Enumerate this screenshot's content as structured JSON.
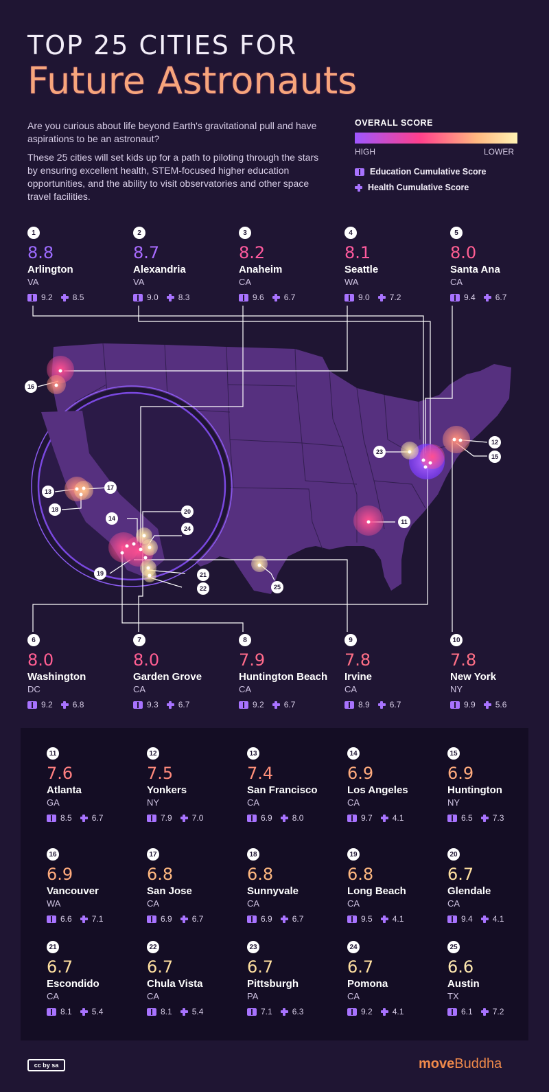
{
  "header": {
    "title_top": "TOP 25 CITIES FOR",
    "title_main": "Future Astronauts",
    "intro_1": "Are you curious about life beyond Earth's gravitational pull and have aspirations to be an astronaut?",
    "intro_2": "These 25 cities will set kids up for a path to piloting through the stars by ensuring excellent health, STEM-focused higher education opportunities, and the ability to visit observatories and other space travel facilities."
  },
  "legend": {
    "title": "OVERALL SCORE",
    "high": "HIGH",
    "low": "LOWER",
    "education": "Education Cumulative Score",
    "health": "Health Cumulative Score",
    "gradient_colors": [
      "#9d57ff",
      "#ff3f8c",
      "#ffb880",
      "#fff2b3"
    ]
  },
  "cities": [
    {
      "rank": "1",
      "score": "8.8",
      "name": "Arlington",
      "state": "VA",
      "edu": "9.2",
      "health": "8.5",
      "color": "#9d6bff"
    },
    {
      "rank": "2",
      "score": "8.7",
      "name": "Alexandria",
      "state": "VA",
      "edu": "9.0",
      "health": "8.3",
      "color": "#a86bff"
    },
    {
      "rank": "3",
      "score": "8.2",
      "name": "Anaheim",
      "state": "CA",
      "edu": "9.6",
      "health": "6.7",
      "color": "#ff5a9e"
    },
    {
      "rank": "4",
      "score": "8.1",
      "name": "Seattle",
      "state": "WA",
      "edu": "9.0",
      "health": "7.2",
      "color": "#ff5a9e"
    },
    {
      "rank": "5",
      "score": "8.0",
      "name": "Santa Ana",
      "state": "CA",
      "edu": "9.4",
      "health": "6.7",
      "color": "#ff5e92"
    },
    {
      "rank": "6",
      "score": "8.0",
      "name": "Washington",
      "state": "DC",
      "edu": "9.2",
      "health": "6.8",
      "color": "#ff5e92"
    },
    {
      "rank": "7",
      "score": "8.0",
      "name": "Garden Grove",
      "state": "CA",
      "edu": "9.3",
      "health": "6.7",
      "color": "#ff5e92"
    },
    {
      "rank": "8",
      "score": "7.9",
      "name": "Huntington Beach",
      "state": "CA",
      "edu": "9.2",
      "health": "6.7",
      "color": "#ff6a8a"
    },
    {
      "rank": "9",
      "score": "7.8",
      "name": "Irvine",
      "state": "CA",
      "edu": "8.9",
      "health": "6.7",
      "color": "#ff6f86"
    },
    {
      "rank": "10",
      "score": "7.8",
      "name": "New York",
      "state": "NY",
      "edu": "9.9",
      "health": "5.6",
      "color": "#ff6f86"
    },
    {
      "rank": "11",
      "score": "7.6",
      "name": "Atlanta",
      "state": "GA",
      "edu": "8.5",
      "health": "6.7",
      "color": "#ff7f80"
    },
    {
      "rank": "12",
      "score": "7.5",
      "name": "Yonkers",
      "state": "NY",
      "edu": "7.9",
      "health": "7.0",
      "color": "#ff8a7c"
    },
    {
      "rank": "13",
      "score": "7.4",
      "name": "San Francisco",
      "state": "CA",
      "edu": "6.9",
      "health": "8.0",
      "color": "#ff907a"
    },
    {
      "rank": "14",
      "score": "6.9",
      "name": "Los Angeles",
      "state": "CA",
      "edu": "9.7",
      "health": "4.1",
      "color": "#ffab7d"
    },
    {
      "rank": "15",
      "score": "6.9",
      "name": "Huntington",
      "state": "NY",
      "edu": "6.5",
      "health": "7.3",
      "color": "#ffab7d"
    },
    {
      "rank": "16",
      "score": "6.9",
      "name": "Vancouver",
      "state": "WA",
      "edu": "6.6",
      "health": "7.1",
      "color": "#ffab7d"
    },
    {
      "rank": "17",
      "score": "6.8",
      "name": "San Jose",
      "state": "CA",
      "edu": "6.9",
      "health": "6.7",
      "color": "#ffb880"
    },
    {
      "rank": "18",
      "score": "6.8",
      "name": "Sunnyvale",
      "state": "CA",
      "edu": "6.9",
      "health": "6.7",
      "color": "#ffb880"
    },
    {
      "rank": "19",
      "score": "6.8",
      "name": "Long Beach",
      "state": "CA",
      "edu": "9.5",
      "health": "4.1",
      "color": "#ffb880"
    },
    {
      "rank": "20",
      "score": "6.7",
      "name": "Glendale",
      "state": "CA",
      "edu": "9.4",
      "health": "4.1",
      "color": "#ffe0a0"
    },
    {
      "rank": "21",
      "score": "6.7",
      "name": "Escondido",
      "state": "CA",
      "edu": "8.1",
      "health": "5.4",
      "color": "#ffe0a0"
    },
    {
      "rank": "22",
      "score": "6.7",
      "name": "Chula Vista",
      "state": "CA",
      "edu": "8.1",
      "health": "5.4",
      "color": "#ffe0a0"
    },
    {
      "rank": "23",
      "score": "6.7",
      "name": "Pittsburgh",
      "state": "PA",
      "edu": "7.1",
      "health": "6.3",
      "color": "#ffe0a0"
    },
    {
      "rank": "24",
      "score": "6.7",
      "name": "Pomona",
      "state": "CA",
      "edu": "9.2",
      "health": "4.1",
      "color": "#ffe0a0"
    },
    {
      "rank": "25",
      "score": "6.6",
      "name": "Austin",
      "state": "TX",
      "edu": "6.1",
      "health": "7.2",
      "color": "#ffe9b0"
    }
  ],
  "footer": {
    "cc_label": "cc by sa",
    "brand_part1": "move",
    "brand_part2": "Buddha"
  }
}
